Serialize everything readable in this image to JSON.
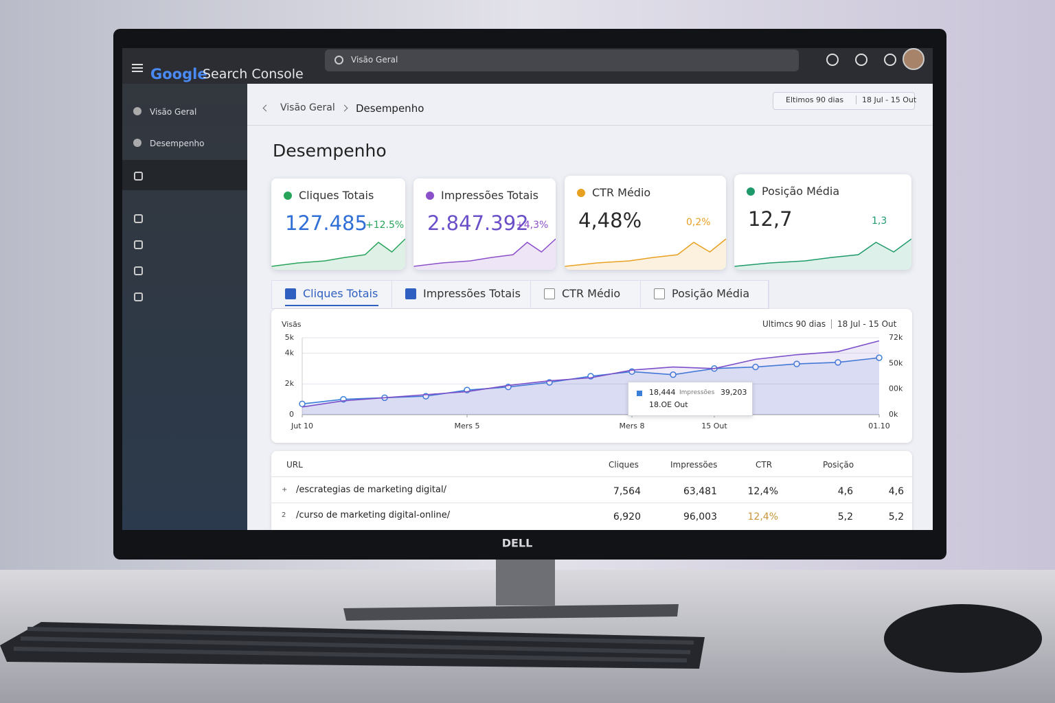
{
  "header": {
    "logo_google": "Google",
    "logo_product": "Search Console",
    "search": "Visão Geral"
  },
  "sidebar": {
    "items": [
      "Visão Geral",
      "Desempenho"
    ]
  },
  "breadcrumb": [
    "Visão Geral",
    "Desempenho"
  ],
  "date_range": {
    "period": "Eltimos 90 dias",
    "dates": "18 Jul - 15 Out"
  },
  "page_title": "Desempenho",
  "cards": [
    {
      "title": "Cliques Totais",
      "value": "127.485",
      "change": "+12.5%",
      "color": "#2f6fd6",
      "accent": "#27a35a"
    },
    {
      "title": "Impressões Totais",
      "value": "2.847.392",
      "change": "+4,3%",
      "color": "#6a4fc9",
      "accent": "#8a4fc9"
    },
    {
      "title": "CTR Médio",
      "value": "4,48%",
      "change": "0,2%",
      "color": "#2a2a2a",
      "accent": "#e8a020"
    },
    {
      "title": "Posição Média",
      "value": "12,7",
      "change": "1,3",
      "color": "#2a2a2a",
      "accent": "#1e9a6a"
    }
  ],
  "tabs": [
    {
      "label": "Cliques Totais",
      "checked": true
    },
    {
      "label": "Impressões Totais",
      "checked": true
    },
    {
      "label": "CTR Médio",
      "checked": false
    },
    {
      "label": "Posição Média",
      "checked": false
    }
  ],
  "chart_data": {
    "type": "line",
    "y_label": "Visãs",
    "period": "Ultimcs 90 dias",
    "dates": "18 Jul - 15 Out",
    "categories": [
      "Jut 10",
      null,
      null,
      null,
      "Mers 5",
      null,
      null,
      null,
      "Mers 8",
      null,
      "15 Out",
      null,
      null,
      null,
      "01.10"
    ],
    "ylim": [
      0,
      5000
    ],
    "yticks": [
      0,
      {
        "value": 2000,
        "label": "2k"
      },
      {
        "value": 4000,
        "label": "4k"
      },
      {
        "value": 5000,
        "label": "5k"
      }
    ],
    "y2_tick_labels": [
      "72k",
      "50k",
      "00k",
      "0k"
    ],
    "grid": true,
    "series": [
      {
        "name": "Cliques Totais",
        "color": "#3b7fd9",
        "values": [
          700,
          1000,
          1100,
          1200,
          1600,
          1800,
          2100,
          2500,
          2800,
          2600,
          3000,
          3100,
          3300,
          3400,
          3700
        ]
      },
      {
        "name": "Impressões Totais",
        "color": "#7a4fc9",
        "values": [
          500,
          900,
          1100,
          1300,
          1500,
          1900,
          2200,
          2400,
          2900,
          3100,
          3000,
          3600,
          3900,
          4100,
          4800
        ]
      }
    ],
    "tooltip": {
      "clicks": "18,444",
      "label": "Impressões",
      "impressions": "39,203",
      "date": "18.OE Out"
    }
  },
  "table": {
    "headers": [
      "URL",
      "Cliques",
      "Impressões",
      "CTR",
      "Posição"
    ],
    "rows": [
      [
        "+",
        "/escrategias de marketing digital/",
        "7,564",
        "63,481",
        "12,4%",
        "4,6",
        "4,6"
      ],
      [
        "2",
        "/curso de marketing digital-online/",
        "6,920",
        "96,003",
        "12,4%",
        "5,2",
        "5,2"
      ]
    ]
  },
  "brand": "DELL"
}
